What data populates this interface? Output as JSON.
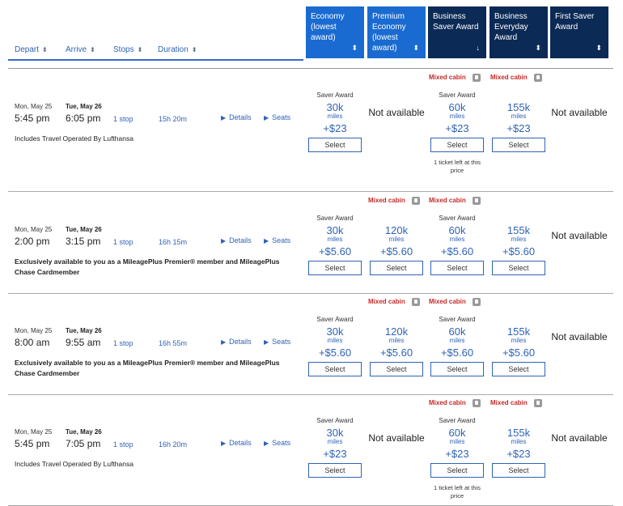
{
  "header": {
    "sort_labels": [
      "Depart",
      "Arrive",
      "Stops",
      "Duration"
    ],
    "columns": [
      {
        "label": "Economy (lowest award)",
        "arrow": "⬍"
      },
      {
        "label": "Premium Economy (lowest award)",
        "arrow": "⬍"
      },
      {
        "label": "Business Saver Award",
        "arrow": "↓"
      },
      {
        "label": "Business Everyday Award",
        "arrow": "⬍"
      },
      {
        "label": "First Saver Award",
        "arrow": "⬍"
      }
    ]
  },
  "links": {
    "details": "Details",
    "seats": "Seats",
    "select": "Select",
    "mixed": "Mixed cabin",
    "saver": "Saver Award",
    "miles": "miles",
    "not_available": "Not available",
    "ticket_left": "1 ticket left at this price"
  },
  "flights": [
    {
      "depart_day": "Mon, May 25",
      "depart_time": "5:45 pm",
      "arrive_day": "Tue, May 26",
      "arrive_time": "6:05 pm",
      "stops": "1 stop",
      "duration": "15h 20m",
      "note": "Includes Travel Operated By Lufthansa",
      "fares": [
        {
          "miles": "30k",
          "tax": "+$23",
          "saver": true
        },
        null,
        {
          "miles": "60k",
          "tax": "+$23",
          "saver": true,
          "mixed": true,
          "left": true
        },
        {
          "miles": "155k",
          "tax": "+$23",
          "mixed": true
        },
        null
      ]
    },
    {
      "depart_day": "Mon, May 25",
      "depart_time": "2:00 pm",
      "arrive_day": "Tue, May 26",
      "arrive_time": "3:15 pm",
      "stops": "1 stop",
      "duration": "16h 15m",
      "note": "Exclusively available to you as a MileagePlus Premier® member and MileagePlus Chase Cardmember",
      "fares": [
        {
          "miles": "30k",
          "tax": "+$5.60",
          "saver": true
        },
        {
          "miles": "120k",
          "tax": "+$5.60",
          "mixed": true
        },
        {
          "miles": "60k",
          "tax": "+$5.60",
          "saver": true,
          "mixed": true
        },
        {
          "miles": "155k",
          "tax": "+$5.60"
        },
        null
      ]
    },
    {
      "depart_day": "Mon, May 25",
      "depart_time": "8:00 am",
      "arrive_day": "Tue, May 26",
      "arrive_time": "9:55 am",
      "stops": "1 stop",
      "duration": "16h 55m",
      "note": "Exclusively available to you as a MileagePlus Premier® member and MileagePlus Chase Cardmember",
      "fares": [
        {
          "miles": "30k",
          "tax": "+$5.60",
          "saver": true
        },
        {
          "miles": "120k",
          "tax": "+$5.60",
          "mixed": true
        },
        {
          "miles": "60k",
          "tax": "+$5.60",
          "saver": true,
          "mixed": true
        },
        {
          "miles": "155k",
          "tax": "+$5.60"
        },
        null
      ]
    },
    {
      "depart_day": "Mon, May 25",
      "depart_time": "5:45 pm",
      "arrive_day": "Tue, May 26",
      "arrive_time": "7:05 pm",
      "stops": "1 stop",
      "duration": "16h 20m",
      "note": "Includes Travel Operated By Lufthansa",
      "fares": [
        {
          "miles": "30k",
          "tax": "+$23",
          "saver": true
        },
        null,
        {
          "miles": "60k",
          "tax": "+$23",
          "saver": true,
          "mixed": true,
          "left": true
        },
        {
          "miles": "155k",
          "tax": "+$23",
          "mixed": true
        },
        null
      ]
    }
  ]
}
